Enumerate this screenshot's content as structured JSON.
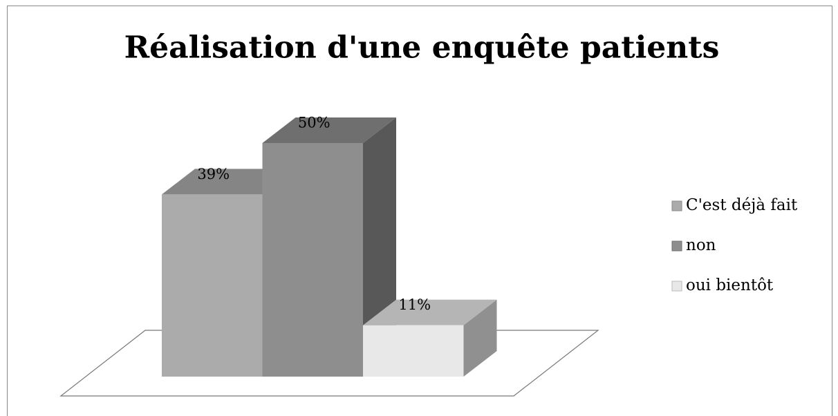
{
  "chart_data": {
    "type": "bar3d",
    "title": "Réalisation d'une enquête patients",
    "categories": [
      null
    ],
    "series": [
      {
        "name": "C'est déjà fait",
        "color": "#ababab",
        "values": [
          39
        ],
        "value_labels": [
          "39%"
        ]
      },
      {
        "name": "non",
        "color": "#8e8e8e",
        "values": [
          50
        ],
        "value_labels": [
          "50%"
        ]
      },
      {
        "name": "oui bientôt",
        "color": "#e8e8e8",
        "values": [
          11
        ],
        "value_labels": [
          "11%"
        ]
      }
    ],
    "legend": "right"
  }
}
